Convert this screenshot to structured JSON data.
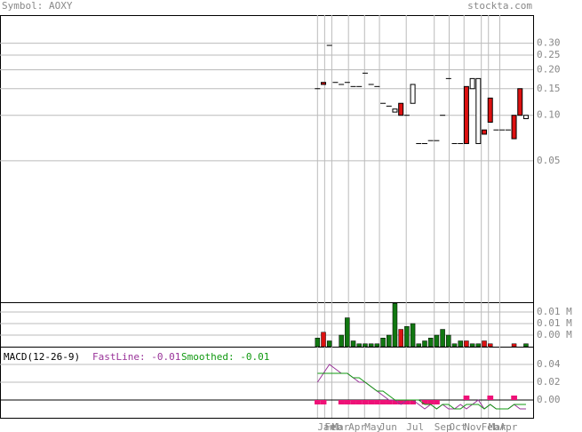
{
  "header": {
    "symbol": "Symbol: AOXY",
    "site": "stockta.com"
  },
  "chart_data": [
    {
      "type": "candlestick",
      "log": true,
      "up_color": "#ffffff",
      "down_color": "#dd1111",
      "ylim": [
        0.0058,
        0.46
      ],
      "yticks": [
        {
          "value": 0.3,
          "label": "0.30"
        },
        0.25,
        {
          "value": 0.2,
          "label": "0.20"
        },
        0.15,
        {
          "value": 0.1,
          "label": "0.10"
        },
        0.05
      ],
      "open": [
        0.15,
        0.165,
        0.29,
        0.165,
        0.16,
        0.165,
        0.155,
        0.155,
        0.19,
        0.16,
        0.155,
        0.12,
        0.115,
        0.105,
        0.12,
        0.1,
        0.12,
        0.065,
        0.065,
        0.068,
        0.068,
        0.1,
        0.175,
        0.065,
        0.065,
        0.155,
        0.15,
        0.065,
        0.08,
        0.13,
        0.08,
        0.08,
        0.08,
        0.1,
        0.15,
        0.095
      ],
      "close": [
        0.15,
        0.16,
        0.29,
        0.165,
        0.16,
        0.165,
        0.155,
        0.155,
        0.19,
        0.16,
        0.155,
        0.12,
        0.115,
        0.11,
        0.1,
        0.1,
        0.16,
        0.065,
        0.065,
        0.068,
        0.068,
        0.1,
        0.175,
        0.065,
        0.065,
        0.065,
        0.175,
        0.175,
        0.075,
        0.09,
        0.08,
        0.08,
        0.08,
        0.07,
        0.1,
        0.1
      ]
    },
    {
      "type": "bar",
      "color": "#117711",
      "down_color": "#dd1111",
      "ylim": [
        0,
        0.0154
      ],
      "yticks": [
        {
          "value": 0.012,
          "label": "0.01 M"
        },
        {
          "value": 0.008,
          "label": "0.01 M"
        },
        {
          "value": 0.004,
          "label": "0.00 M"
        }
      ],
      "values": [
        0.003,
        0.005,
        0.002,
        0.0,
        0.004,
        0.01,
        0.002,
        0.001,
        0.001,
        0.001,
        0.001,
        0.003,
        0.004,
        0.015,
        0.006,
        0.007,
        0.008,
        0.001,
        0.002,
        0.003,
        0.004,
        0.006,
        0.004,
        0.001,
        0.002,
        0.002,
        0.001,
        0.001,
        0.002,
        0.001,
        0.0,
        0.0,
        0.0,
        0.001,
        0.0,
        0.001
      ]
    },
    {
      "type": "line",
      "title": "MACD(12-26-9)",
      "xlim": [
        -53.3,
        36.2
      ],
      "xticks": [
        {
          "value": 0,
          "label": "Jan"
        },
        {
          "value": 1.2,
          "label": "Feb"
        },
        {
          "value": 2.4,
          "label": "Mar"
        },
        {
          "value": 5.2,
          "label": "Apr"
        },
        {
          "value": 7.9,
          "label": "May"
        },
        {
          "value": 10.4,
          "label": "Jun"
        },
        {
          "value": 14.9,
          "label": "Jul"
        },
        {
          "value": 19.6,
          "label": "Sep"
        },
        {
          "value": 22.1,
          "label": "Oct"
        },
        {
          "value": 24.6,
          "label": "Nov"
        },
        {
          "value": 27.5,
          "label": "Feb"
        },
        {
          "value": 28.7,
          "label": "Mar"
        },
        {
          "value": 30.6,
          "label": "Apr"
        }
      ],
      "ylim": [
        -0.02,
        0.06
      ],
      "yticks": [
        {
          "value": 0.04,
          "label": "0.04"
        },
        {
          "value": 0.02,
          "label": "0.02"
        },
        {
          "value": 0,
          "label": "0.00"
        }
      ],
      "series": [
        {
          "name": "FastLine: -0.01",
          "color": "#993399",
          "values": [
            0.02,
            0.03,
            0.04,
            0.035,
            0.03,
            0.03,
            0.025,
            0.02,
            0.02,
            0.015,
            0.01,
            0.005,
            0.0,
            0.0,
            -0.005,
            0.0,
            0.0,
            -0.005,
            -0.01,
            -0.005,
            -0.01,
            -0.005,
            -0.01,
            -0.01,
            -0.005,
            -0.01,
            -0.005,
            0.0,
            -0.01,
            -0.005,
            -0.01,
            -0.01,
            -0.01,
            -0.005,
            -0.01,
            -0.01
          ]
        },
        {
          "name": "Smoothed: -0.01",
          "color": "#119911",
          "values": [
            0.03,
            0.03,
            0.03,
            0.03,
            0.03,
            0.03,
            0.025,
            0.025,
            0.02,
            0.015,
            0.01,
            0.01,
            0.005,
            0.0,
            0.0,
            0.0,
            0.0,
            0.0,
            -0.005,
            -0.005,
            -0.01,
            -0.005,
            -0.005,
            -0.01,
            -0.01,
            -0.005,
            -0.005,
            -0.005,
            -0.01,
            -0.005,
            -0.01,
            -0.01,
            -0.01,
            -0.005,
            -0.005,
            -0.005
          ]
        }
      ],
      "histogram": {
        "color": "#ee1177",
        "values": [
          -0.005,
          -0.005,
          0,
          0,
          -0.005,
          -0.005,
          -0.005,
          -0.005,
          -0.005,
          -0.005,
          -0.005,
          -0.005,
          -0.005,
          -0.005,
          -0.005,
          -0.005,
          -0.005,
          0,
          -0.005,
          -0.005,
          -0.005,
          0,
          0,
          0,
          0,
          0.005,
          0,
          0,
          0,
          0.005,
          0,
          0,
          0,
          0.005,
          0,
          0
        ]
      }
    }
  ]
}
